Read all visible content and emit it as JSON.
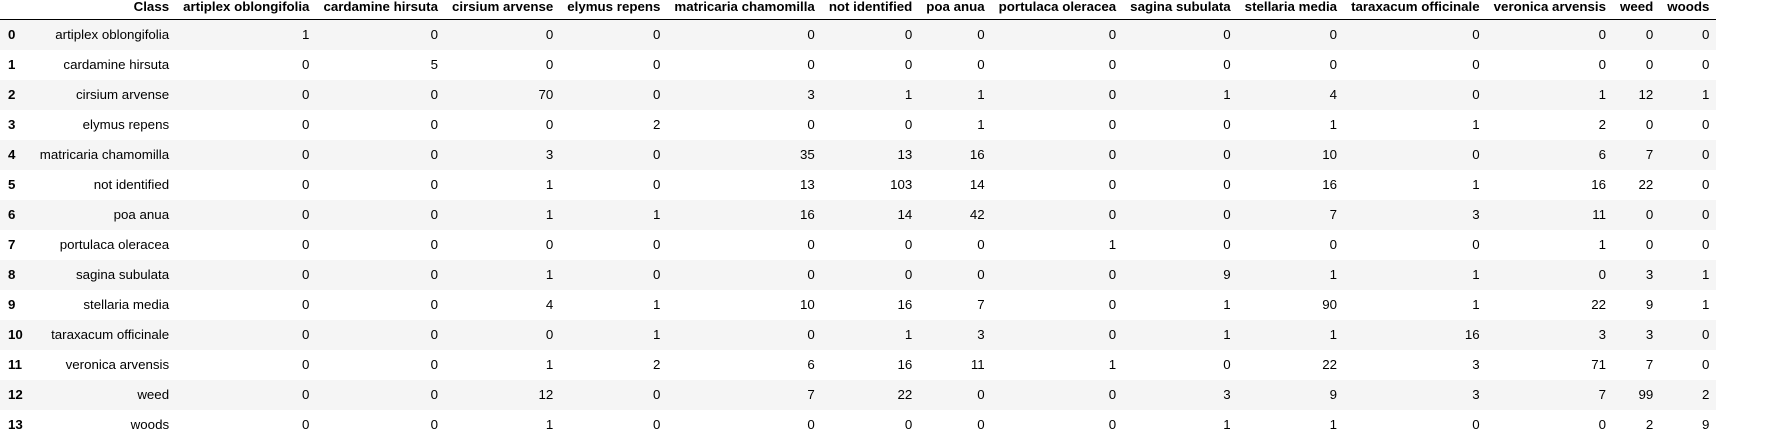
{
  "table": {
    "columns": [
      "Class",
      "artiplex oblongifolia",
      "cardamine hirsuta",
      "cirsium arvense",
      "elymus repens",
      "matricaria chamomilla",
      "not identified",
      "poa anua",
      "portulaca oleracea",
      "sagina subulata",
      "stellaria media",
      "taraxacum officinale",
      "veronica arvensis",
      "weed",
      "woods"
    ],
    "rows": [
      {
        "index": "0",
        "cells": [
          "artiplex oblongifolia",
          "1",
          "0",
          "0",
          "0",
          "0",
          "0",
          "0",
          "0",
          "0",
          "0",
          "0",
          "0",
          "0",
          "0"
        ]
      },
      {
        "index": "1",
        "cells": [
          "cardamine hirsuta",
          "0",
          "5",
          "0",
          "0",
          "0",
          "0",
          "0",
          "0",
          "0",
          "0",
          "0",
          "0",
          "0",
          "0"
        ]
      },
      {
        "index": "2",
        "cells": [
          "cirsium arvense",
          "0",
          "0",
          "70",
          "0",
          "3",
          "1",
          "1",
          "0",
          "1",
          "4",
          "0",
          "1",
          "12",
          "1"
        ]
      },
      {
        "index": "3",
        "cells": [
          "elymus repens",
          "0",
          "0",
          "0",
          "2",
          "0",
          "0",
          "1",
          "0",
          "0",
          "1",
          "1",
          "2",
          "0",
          "0"
        ]
      },
      {
        "index": "4",
        "cells": [
          "matricaria chamomilla",
          "0",
          "0",
          "3",
          "0",
          "35",
          "13",
          "16",
          "0",
          "0",
          "10",
          "0",
          "6",
          "7",
          "0"
        ]
      },
      {
        "index": "5",
        "cells": [
          "not identified",
          "0",
          "0",
          "1",
          "0",
          "13",
          "103",
          "14",
          "0",
          "0",
          "16",
          "1",
          "16",
          "22",
          "0"
        ]
      },
      {
        "index": "6",
        "cells": [
          "poa anua",
          "0",
          "0",
          "1",
          "1",
          "16",
          "14",
          "42",
          "0",
          "0",
          "7",
          "3",
          "11",
          "0",
          "0"
        ]
      },
      {
        "index": "7",
        "cells": [
          "portulaca oleracea",
          "0",
          "0",
          "0",
          "0",
          "0",
          "0",
          "0",
          "1",
          "0",
          "0",
          "0",
          "1",
          "0",
          "0"
        ]
      },
      {
        "index": "8",
        "cells": [
          "sagina subulata",
          "0",
          "0",
          "1",
          "0",
          "0",
          "0",
          "0",
          "0",
          "9",
          "1",
          "1",
          "0",
          "3",
          "1"
        ]
      },
      {
        "index": "9",
        "cells": [
          "stellaria media",
          "0",
          "0",
          "4",
          "1",
          "10",
          "16",
          "7",
          "0",
          "1",
          "90",
          "1",
          "22",
          "9",
          "1"
        ]
      },
      {
        "index": "10",
        "cells": [
          "taraxacum officinale",
          "0",
          "0",
          "0",
          "1",
          "0",
          "1",
          "3",
          "0",
          "1",
          "1",
          "16",
          "3",
          "3",
          "0"
        ]
      },
      {
        "index": "11",
        "cells": [
          "veronica arvensis",
          "0",
          "0",
          "1",
          "2",
          "6",
          "16",
          "11",
          "1",
          "0",
          "22",
          "3",
          "71",
          "7",
          "0"
        ]
      },
      {
        "index": "12",
        "cells": [
          "weed",
          "0",
          "0",
          "12",
          "0",
          "7",
          "22",
          "0",
          "0",
          "3",
          "9",
          "3",
          "7",
          "99",
          "2"
        ]
      },
      {
        "index": "13",
        "cells": [
          "woods",
          "0",
          "0",
          "1",
          "0",
          "0",
          "0",
          "0",
          "0",
          "1",
          "1",
          "0",
          "0",
          "2",
          "9"
        ]
      }
    ]
  }
}
